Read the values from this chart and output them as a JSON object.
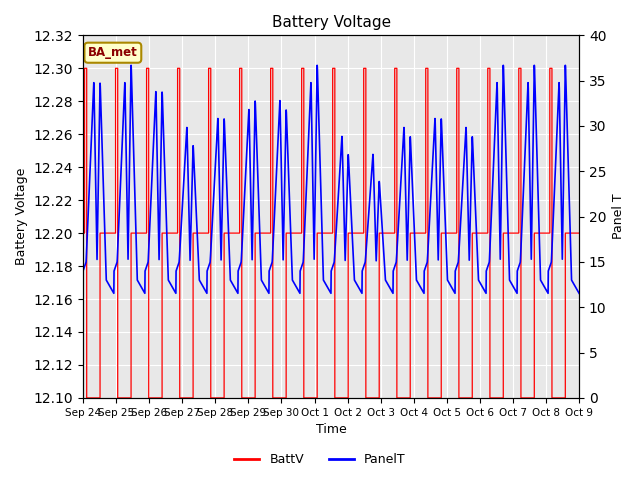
{
  "title": "Battery Voltage",
  "xlabel": "Time",
  "ylabel_left": "Battery Voltage",
  "ylabel_right": "Panel T",
  "ylim_left": [
    12.1,
    12.32
  ],
  "ylim_right": [
    0,
    40
  ],
  "yticks_left": [
    12.1,
    12.12,
    12.14,
    12.16,
    12.18,
    12.2,
    12.22,
    12.24,
    12.26,
    12.28,
    12.3,
    12.32
  ],
  "yticks_right": [
    0,
    5,
    10,
    15,
    20,
    25,
    30,
    35,
    40
  ],
  "xtick_labels": [
    "Sep 24",
    "Sep 25",
    "Sep 26",
    "Sep 27",
    "Sep 28",
    "Sep 29",
    "Sep 30",
    "Oct 1",
    "Oct 2",
    "Oct 3",
    "Oct 4",
    "Oct 5",
    "Oct 6",
    "Oct 7",
    "Oct 8",
    "Oct 9"
  ],
  "background_color": "#ffffff",
  "plot_bg_color": "#e8e8e8",
  "annotation_text": "BA_met",
  "annotation_bg": "#ffffcc",
  "annotation_border": "#aa8800",
  "annotation_text_color": "#8b0000",
  "batt_color": "#ff0000",
  "panel_color": "#0000ff",
  "legend_batt": "BattV",
  "legend_panel": "PanelT",
  "n_days": 16,
  "batt_baseline": 12.2,
  "batt_high": 12.3,
  "batt_low": 12.1,
  "panel_night": 14.0,
  "panel_peak_base": 35.0,
  "panel_peak_variations": [
    35,
    35,
    34,
    30,
    31,
    32,
    33,
    35,
    29,
    27,
    30,
    31,
    30,
    35,
    35,
    35
  ],
  "panel_secondary_peak_variations": [
    0,
    2,
    0,
    -2,
    0,
    1,
    -1,
    2,
    -2,
    -3,
    -1,
    0,
    -1,
    2,
    2,
    2
  ]
}
